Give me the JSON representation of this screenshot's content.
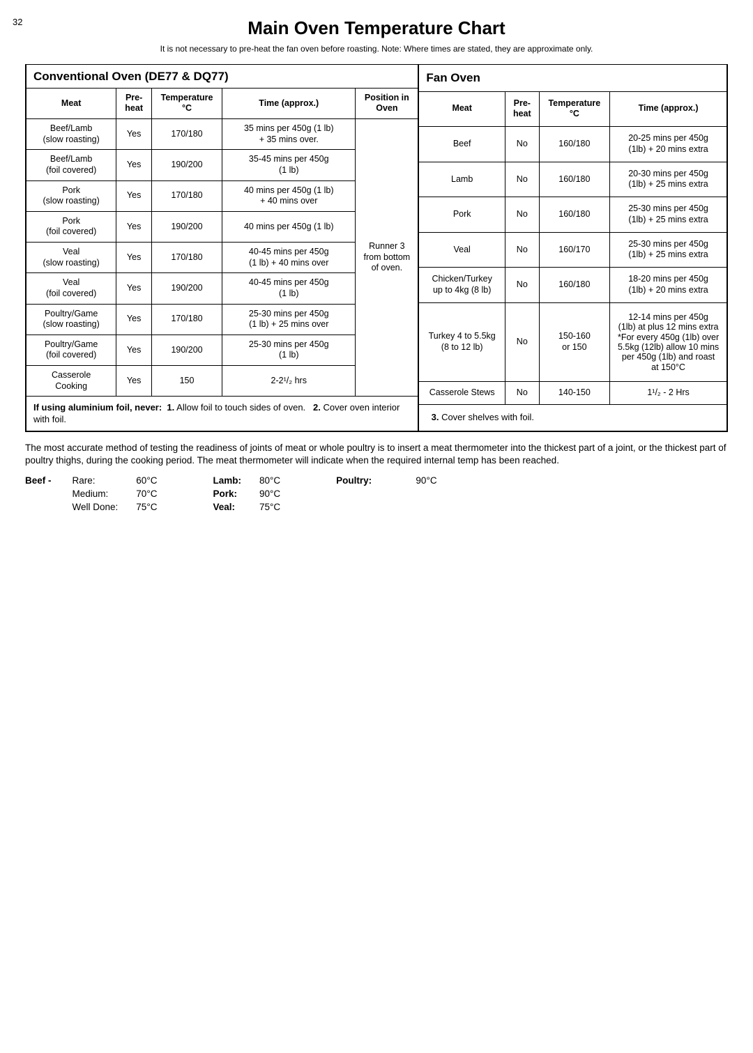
{
  "page_number": "32",
  "title": "Main Oven Temperature Chart",
  "subtitle": "It is not necessary to pre-heat the fan oven before roasting. Note: Where times are stated, they are approximate only.",
  "conv": {
    "heading": "Conventional Oven  (DE77 & DQ77)",
    "cols": {
      "meat": "Meat",
      "preheat": "Pre-heat",
      "temp": "Temperature °C",
      "time": "Time (approx.)",
      "pos": "Position in Oven"
    },
    "oven_position": "Runner 3 from bottom of oven.",
    "rows": [
      {
        "meat": "Beef/Lamb\n(slow roasting)",
        "preheat": "Yes",
        "temp": "170/180",
        "time": "35 mins per 450g (1 lb)\n+ 35 mins over."
      },
      {
        "meat": "Beef/Lamb\n(foil covered)",
        "preheat": "Yes",
        "temp": "190/200",
        "time": "35-45 mins per 450g\n(1 lb)"
      },
      {
        "meat": "Pork\n(slow roasting)",
        "preheat": "Yes",
        "temp": "170/180",
        "time": "40 mins per 450g (1 lb)\n+ 40 mins over"
      },
      {
        "meat": "Pork\n(foil covered)",
        "preheat": "Yes",
        "temp": "190/200",
        "time": "40 mins per 450g (1 lb)"
      },
      {
        "meat": "Veal\n(slow roasting)",
        "preheat": "Yes",
        "temp": "170/180",
        "time": "40-45 mins per 450g\n(1 lb) + 40 mins over"
      },
      {
        "meat": "Veal\n(foil covered)",
        "preheat": "Yes",
        "temp": "190/200",
        "time": "40-45 mins per 450g\n(1 lb)"
      },
      {
        "meat": "Poultry/Game\n(slow roasting)",
        "preheat": "Yes",
        "temp": "170/180",
        "time": "25-30 mins per 450g\n(1 lb) + 25 mins over"
      },
      {
        "meat": "Poultry/Game\n(foil covered)",
        "preheat": "Yes",
        "temp": "190/200",
        "time": "25-30 mins per 450g\n(1 lb)"
      },
      {
        "meat": "Casserole\nCooking",
        "preheat": "Yes",
        "temp": "150",
        "time": "2-2¹/₂ hrs"
      }
    ]
  },
  "fan": {
    "heading": "Fan Oven",
    "cols": {
      "meat": "Meat",
      "preheat": "Pre-heat",
      "temp": "Temperature °C",
      "time": "Time (approx.)"
    },
    "rows": [
      {
        "meat": "Beef",
        "preheat": "No",
        "temp": "160/180",
        "time": "20-25 mins per 450g\n(1lb) + 20 mins extra"
      },
      {
        "meat": "Lamb",
        "preheat": "No",
        "temp": "160/180",
        "time": "20-30 mins per 450g\n(1lb) + 25 mins extra"
      },
      {
        "meat": "Pork",
        "preheat": "No",
        "temp": "160/180",
        "time": "25-30 mins per 450g\n(1lb) + 25 mins extra"
      },
      {
        "meat": "Veal",
        "preheat": "No",
        "temp": "160/170",
        "time": "25-30 mins per 450g\n(1lb) + 25 mins extra"
      },
      {
        "meat": "Chicken/Turkey\nup to 4kg (8 lb)",
        "preheat": "No",
        "temp": "160/180",
        "time": "18-20 mins per 450g\n(1lb) + 20 mins extra"
      },
      {
        "meat": "Turkey 4 to 5.5kg\n(8 to 12 lb)",
        "preheat": "No",
        "temp": "150-160\nor 150",
        "time_small": "12-14 mins per 450g\n(1lb) at plus 12 mins extra\n*For every 450g (1lb) over\n5.5kg (12lb) allow 10 mins\nper 450g (1lb) and roast\nat 150°C"
      },
      {
        "meat": "Casserole Stews",
        "preheat": "No",
        "temp": "140-150",
        "time": "1¹/₂ - 2 Hrs"
      }
    ]
  },
  "foil_note": {
    "label": "If using aluminium foil, never:",
    "one": "1.",
    "onetxt": "Allow foil to touch sides of oven.",
    "two": "2.",
    "twotxt": "Cover oven interior with foil.",
    "three": "3.",
    "threetxt": "Cover shelves with foil."
  },
  "notes": "The most accurate method of testing the readiness of joints of meat or whole poultry is to insert a meat thermometer into the thickest part of a joint, or the thickest part of poultry thighs, during the cooking period. The meat thermometer will indicate when the required internal temp has been reached.",
  "beef_block": {
    "label": "Beef -",
    "items": [
      {
        "name": "Rare:",
        "val": "60°C"
      },
      {
        "name": "Medium:",
        "val": "70°C"
      },
      {
        "name": "Well Done:",
        "val": "75°C"
      }
    ]
  },
  "other_block": {
    "items": [
      {
        "name": "Lamb:",
        "val": "80°C"
      },
      {
        "name": "Pork:",
        "val": "90°C"
      },
      {
        "name": "Veal:",
        "val": "75°C"
      }
    ]
  },
  "poultry_block": {
    "name": "Poultry:",
    "val": "90°C"
  }
}
